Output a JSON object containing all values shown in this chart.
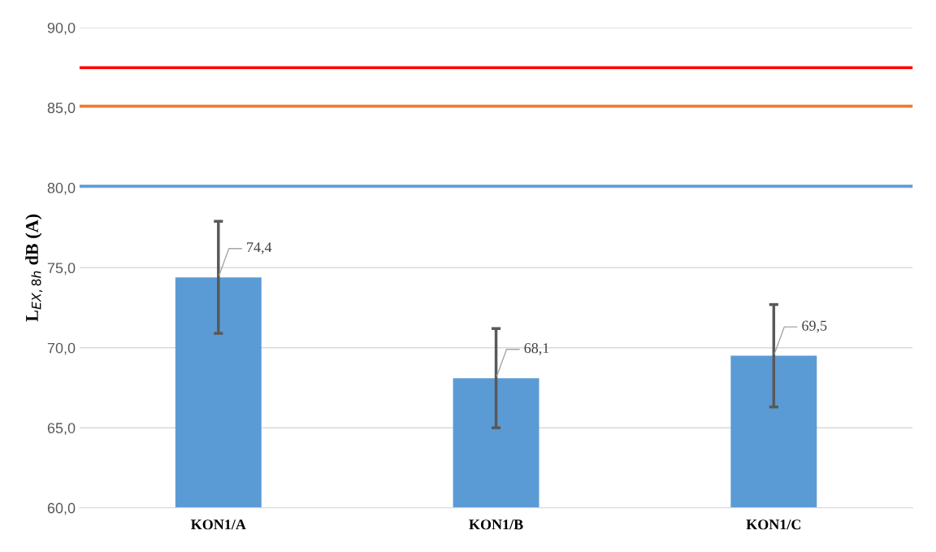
{
  "chart_data": {
    "type": "bar",
    "ylabel": "L$_{EX,8h}$ dB (A)",
    "categories": [
      "KON1/A",
      "KON1/B",
      "KON1/C"
    ],
    "values": [
      74.4,
      68.1,
      69.5
    ],
    "errors": [
      3.5,
      3.1,
      3.2
    ],
    "value_labels": [
      "74,4",
      "68,1",
      "69,5"
    ],
    "color": "#5b9bd5",
    "ylim": [
      60,
      90
    ],
    "yticks": [
      {
        "value": 60,
        "label": "60,0"
      },
      {
        "value": 65,
        "label": "65,0"
      },
      {
        "value": 70,
        "label": "70,0"
      },
      {
        "value": 75,
        "label": "75,0"
      },
      {
        "value": 80,
        "label": "80,0"
      },
      {
        "value": 85,
        "label": "85,0"
      },
      {
        "value": 90,
        "label": "90,0"
      }
    ],
    "ref_lines": [
      {
        "axis": "y",
        "value": 87.5,
        "color": "#ff0000"
      },
      {
        "axis": "y",
        "value": 85.1,
        "color": "#ed7d31"
      },
      {
        "axis": "y",
        "value": 80.1,
        "color": "#5b9bd5"
      }
    ],
    "grid": "y",
    "legend": false
  }
}
